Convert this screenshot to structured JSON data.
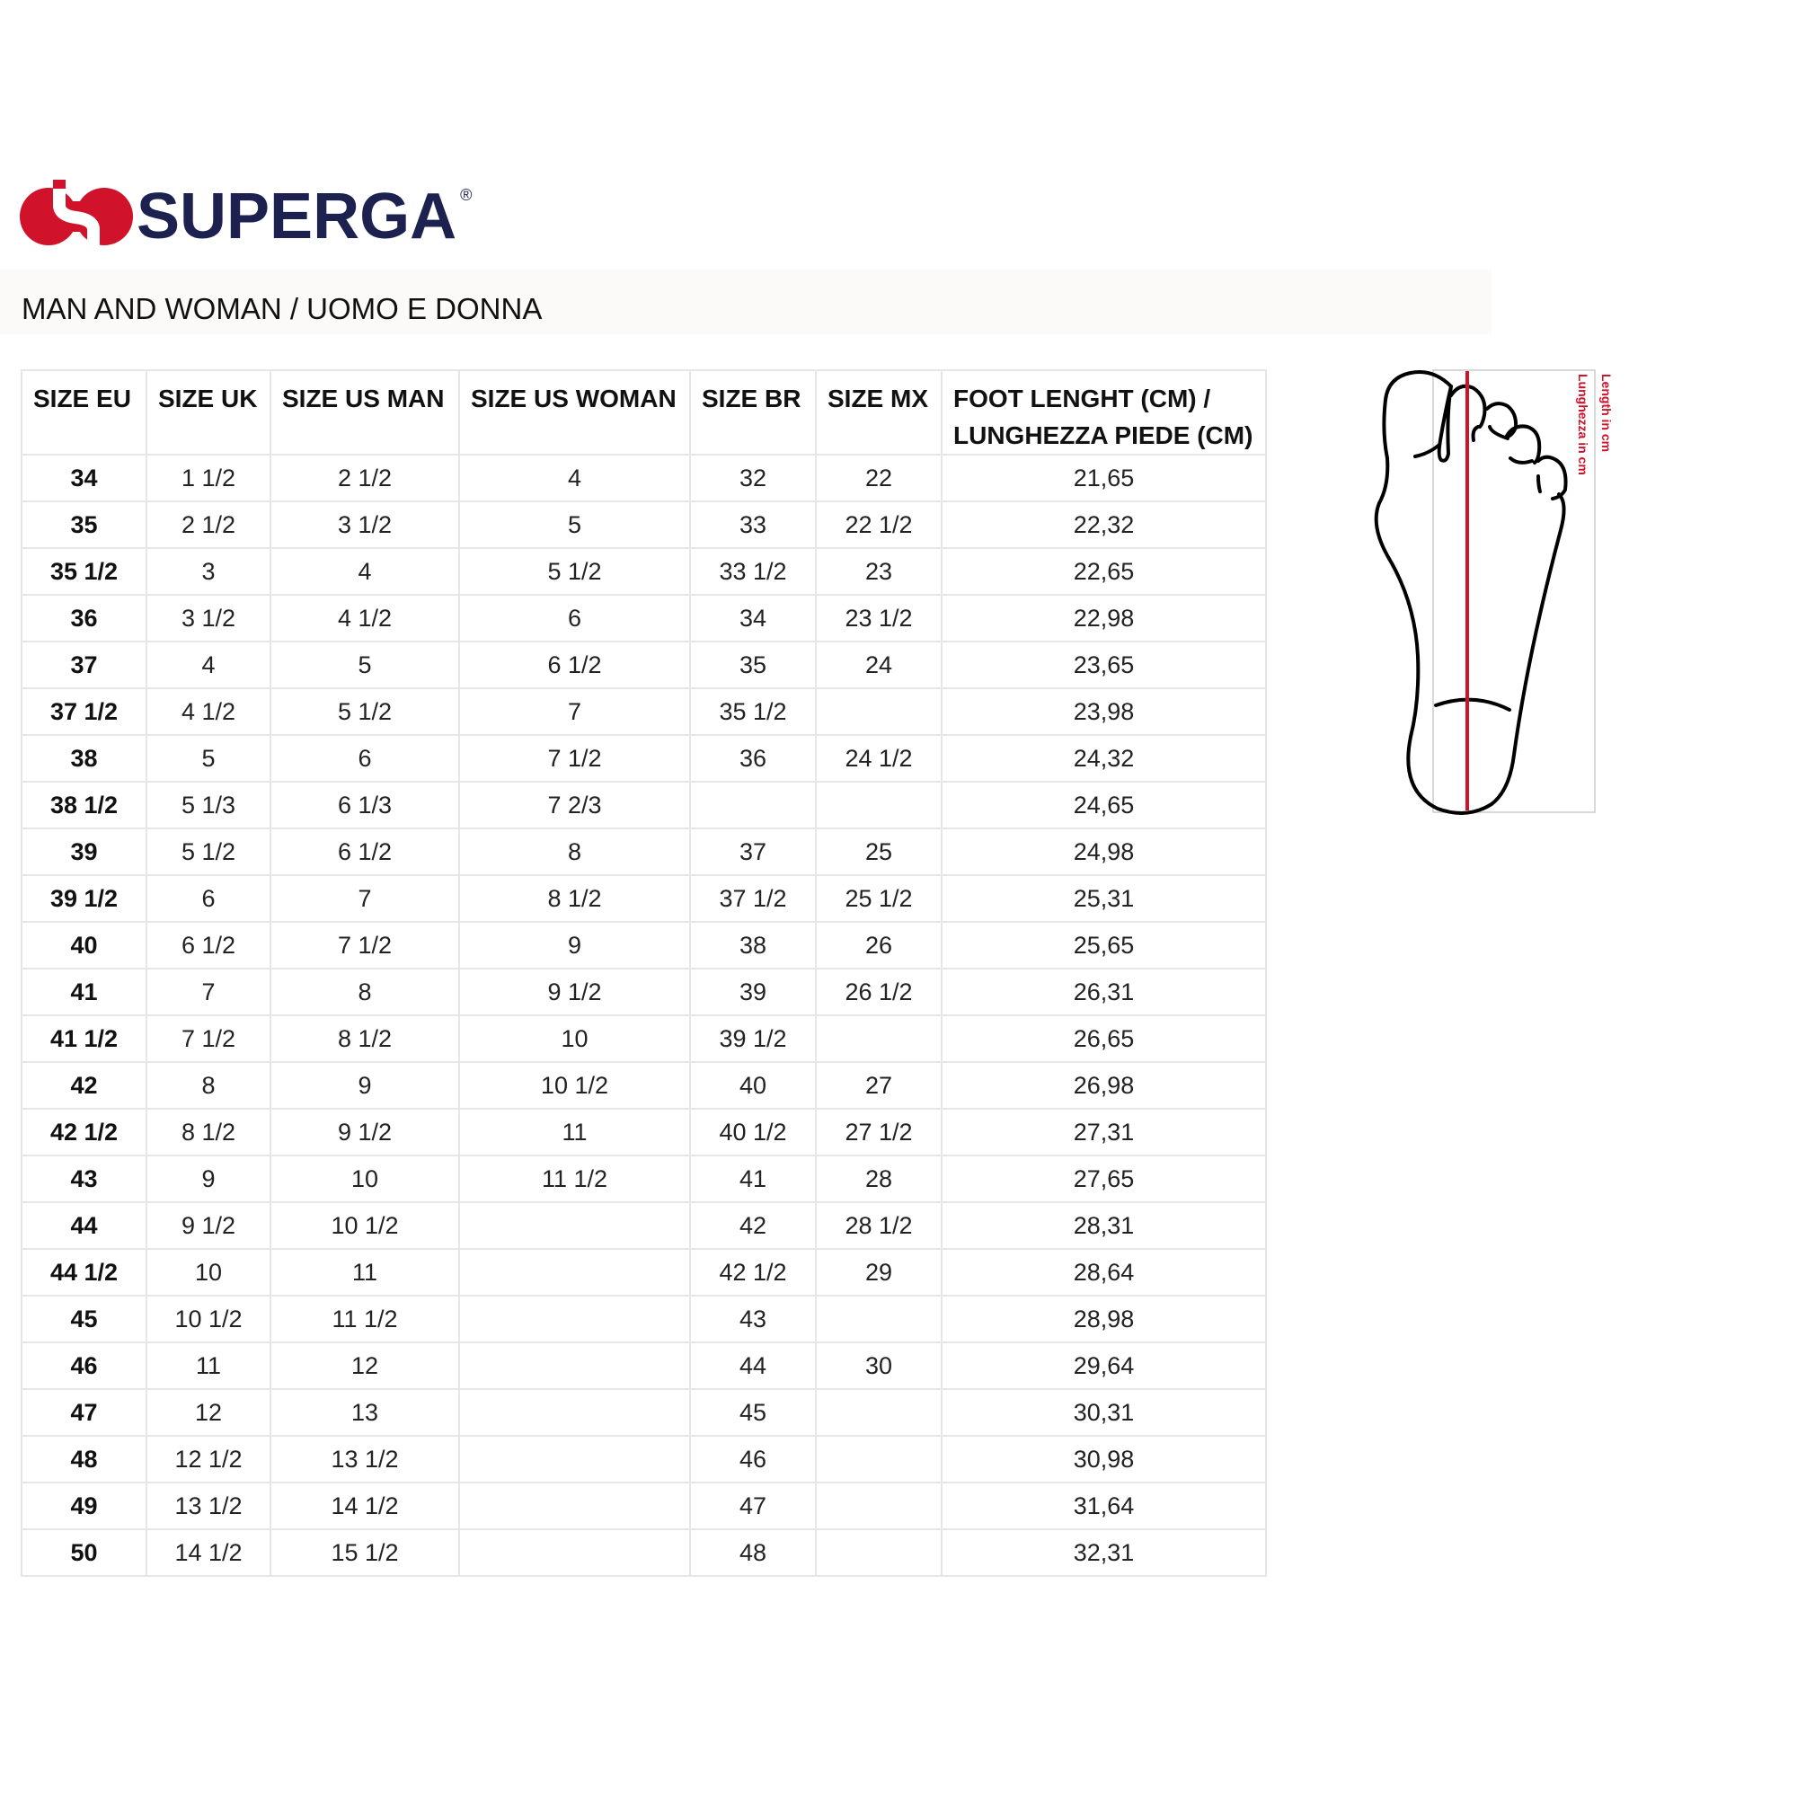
{
  "brand": {
    "name": "SUPERGA",
    "registered": "®",
    "colors": {
      "mark": "#d0122a",
      "text": "#1c2150"
    }
  },
  "title": "MAN AND WOMAN / UOMO E DONNA",
  "table": {
    "headers": [
      "SIZE EU",
      "SIZE UK",
      "SIZE US MAN",
      "SIZE US WOMAN",
      "SIZE BR",
      "SIZE MX",
      "FOOT LENGHT (CM) / LUNGHEZZA PIEDE (CM)"
    ],
    "rows": [
      [
        "34",
        "1 1/2",
        "2 1/2",
        "4",
        "32",
        "22",
        "21,65"
      ],
      [
        "35",
        "2 1/2",
        "3 1/2",
        "5",
        "33",
        "22 1/2",
        "22,32"
      ],
      [
        "35 1/2",
        "3",
        "4",
        "5 1/2",
        "33 1/2",
        "23",
        "22,65"
      ],
      [
        "36",
        "3 1/2",
        "4 1/2",
        "6",
        "34",
        "23 1/2",
        "22,98"
      ],
      [
        "37",
        "4",
        "5",
        "6 1/2",
        "35",
        "24",
        "23,65"
      ],
      [
        "37 1/2",
        "4 1/2",
        "5 1/2",
        "7",
        "35 1/2",
        "",
        "23,98"
      ],
      [
        "38",
        "5",
        "6",
        "7 1/2",
        "36",
        "24 1/2",
        "24,32"
      ],
      [
        "38 1/2",
        "5 1/3",
        "6 1/3",
        "7 2/3",
        "",
        "",
        "24,65"
      ],
      [
        "39",
        "5 1/2",
        "6 1/2",
        "8",
        "37",
        "25",
        "24,98"
      ],
      [
        "39 1/2",
        "6",
        "7",
        "8 1/2",
        "37 1/2",
        "25 1/2",
        "25,31"
      ],
      [
        "40",
        "6 1/2",
        "7 1/2",
        "9",
        "38",
        "26",
        "25,65"
      ],
      [
        "41",
        "7",
        "8",
        "9 1/2",
        "39",
        "26 1/2",
        "26,31"
      ],
      [
        "41 1/2",
        "7 1/2",
        "8 1/2",
        "10",
        "39 1/2",
        "",
        "26,65"
      ],
      [
        "42",
        "8",
        "9",
        "10 1/2",
        "40",
        "27",
        "26,98"
      ],
      [
        "42 1/2",
        "8 1/2",
        "9 1/2",
        "11",
        "40 1/2",
        "27 1/2",
        "27,31"
      ],
      [
        "43",
        "9",
        "10",
        "11 1/2",
        "41",
        "28",
        "27,65"
      ],
      [
        "44",
        "9 1/2",
        "10 1/2",
        "",
        "42",
        "28 1/2",
        "28,31"
      ],
      [
        "44 1/2",
        "10",
        "11",
        "",
        "42 1/2",
        "29",
        "28,64"
      ],
      [
        "45",
        "10 1/2",
        "11 1/2",
        "",
        "43",
        "",
        "28,98"
      ],
      [
        "46",
        "11",
        "12",
        "",
        "44",
        "30",
        "29,64"
      ],
      [
        "47",
        "12",
        "13",
        "",
        "45",
        "",
        "30,31"
      ],
      [
        "48",
        "12 1/2",
        "13 1/2",
        "",
        "46",
        "",
        "30,98"
      ],
      [
        "49",
        "13 1/2",
        "14 1/2",
        "",
        "47",
        "",
        "31,64"
      ],
      [
        "50",
        "14 1/2",
        "15 1/2",
        "",
        "48",
        "",
        "32,31"
      ]
    ]
  },
  "diagram": {
    "label_en": "Length in cm",
    "label_it": "Lunghezza in cm",
    "line_color": "#d0122a"
  }
}
